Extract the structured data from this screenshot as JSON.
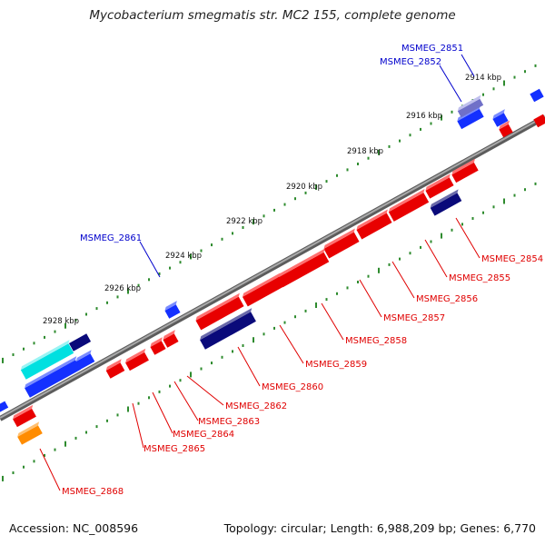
{
  "title": "Mycobacterium smegmatis str. MC2 155, complete genome",
  "footer": {
    "accession": "Accession: NC_008596",
    "summary": "Topology: circular; Length: 6,988,209 bp; Genes: 6,770"
  },
  "colors": {
    "backbone": "#7a7a7a",
    "ticks": "#2e8b2e",
    "label_red": "#e00000",
    "label_blue": "#0000cc"
  },
  "kbp_ticks": [
    "2914 kbp",
    "2916 kbp",
    "2918 kbp",
    "2920 kbp",
    "2922 kbp",
    "2924 kbp",
    "2926 kbp",
    "2928 kbp"
  ],
  "genes_top": [
    {
      "label": "MSMEG_2851"
    },
    {
      "label": "MSMEG_2852"
    },
    {
      "label": "MSMEG_2861"
    }
  ],
  "genes_bottom": [
    {
      "label": "MSMEG_2854"
    },
    {
      "label": "MSMEG_2855"
    },
    {
      "label": "MSMEG_2856"
    },
    {
      "label": "MSMEG_2857"
    },
    {
      "label": "MSMEG_2858"
    },
    {
      "label": "MSMEG_2859"
    },
    {
      "label": "MSMEG_2860"
    },
    {
      "label": "MSMEG_2862"
    },
    {
      "label": "MSMEG_2863"
    },
    {
      "label": "MSMEG_2864"
    },
    {
      "label": "MSMEG_2865"
    },
    {
      "label": "MSMEG_2868"
    }
  ]
}
